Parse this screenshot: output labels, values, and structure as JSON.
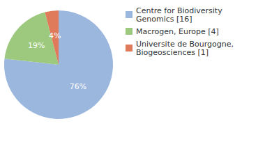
{
  "chart_data": {
    "type": "pie",
    "categories": [
      "Centre for Biodiversity Genomics [16]",
      "Macrogen, Europe [4]",
      "Universite de Bourgogne, Biogeosciences [1]"
    ],
    "values": [
      76,
      19,
      4
    ],
    "value_labels": [
      "76%",
      "19%",
      "4%"
    ],
    "colors": [
      "#9bb7dd",
      "#9cc97e",
      "#df7a5b"
    ],
    "data_labels": true,
    "legend": "top-right"
  }
}
